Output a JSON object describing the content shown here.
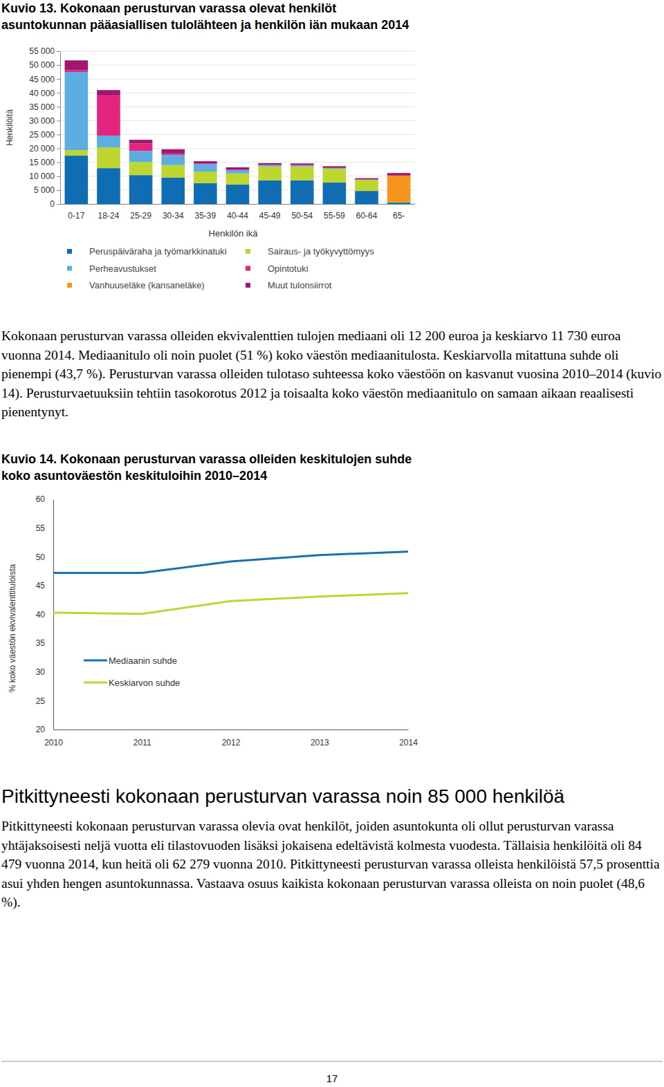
{
  "chart_data": [
    {
      "type": "bar",
      "stacked": true,
      "grid": true,
      "legend": "bottom",
      "title": [
        "Kuvio 13. Kokonaan perusturvan varassa olevat henkilöt",
        "asuntokunnan pääasiallisen tulolähteen ja henkilön iän mukaan 2014"
      ],
      "x_label": "Henkilön ikä",
      "y_label": "Henkilöitä",
      "categories": [
        "0-17",
        "18-24",
        "25-29",
        "30-34",
        "35-39",
        "40-44",
        "45-49",
        "50-54",
        "55-59",
        "60-64",
        "65-"
      ],
      "series": [
        {
          "name": "Peruspäiväraha ja työmarkkinatuki",
          "color": "#106cb3",
          "values": [
            17400,
            12900,
            10400,
            9500,
            7500,
            7000,
            8500,
            8500,
            7700,
            4700,
            500
          ]
        },
        {
          "name": "Sairaus- ja työkyvyttömyys",
          "color": "#bdd630",
          "values": [
            2000,
            7500,
            4700,
            4500,
            4200,
            4000,
            5000,
            5000,
            5000,
            4000,
            250
          ]
        },
        {
          "name": "Perheavustukset",
          "color": "#5caee2",
          "values": [
            28100,
            4200,
            4000,
            3700,
            2700,
            1200,
            500,
            400,
            250,
            100,
            0
          ]
        },
        {
          "name": "Opintotuki",
          "color": "#e5247d",
          "values": [
            700,
            14400,
            2700,
            500,
            250,
            200,
            100,
            100,
            50,
            0,
            0
          ]
        },
        {
          "name": "Vanhuuseläke (kansaneläke)",
          "color": "#f7941d",
          "values": [
            0,
            0,
            0,
            0,
            0,
            0,
            0,
            0,
            0,
            0,
            9500
          ]
        },
        {
          "name": "Muut tulonsiirrot",
          "color": "#a0176f",
          "values": [
            3500,
            2000,
            1300,
            1500,
            750,
            800,
            600,
            600,
            600,
            500,
            900
          ]
        }
      ],
      "ylim": [
        0,
        55000
      ],
      "yticks": [
        {
          "value": 0,
          "label": "0"
        },
        {
          "value": 5000,
          "label": "5 000"
        },
        {
          "value": 10000,
          "label": "10 000"
        },
        {
          "value": 15000,
          "label": "15 000"
        },
        {
          "value": 20000,
          "label": "20 000"
        },
        {
          "value": 25000,
          "label": "25 000"
        },
        {
          "value": 30000,
          "label": "30 000"
        },
        {
          "value": 35000,
          "label": "35 000"
        },
        {
          "value": 40000,
          "label": "40 000"
        },
        {
          "value": 45000,
          "label": "45 000"
        },
        {
          "value": 50000,
          "label": "50 000"
        },
        {
          "value": 55000,
          "label": "55 000"
        }
      ]
    },
    {
      "type": "line",
      "grid": false,
      "legend": "bottom-left",
      "title": [
        "Kuvio 14. Kokonaan perusturvan varassa olleiden keskitulojen suhde",
        "koko asuntoväestön keskituloihin 2010–2014"
      ],
      "y_label": "% koko väestön ekvivalenttituloista",
      "x": [
        2010,
        2011,
        2012,
        2013,
        2014
      ],
      "xlim": [
        2010,
        2014
      ],
      "xticks": [
        2010,
        2011,
        2012,
        2013,
        2014
      ],
      "ylim": [
        20,
        60
      ],
      "yticks": [
        20,
        25,
        30,
        35,
        40,
        45,
        50,
        55,
        60
      ],
      "series": [
        {
          "name": "Mediaanin suhde",
          "color": "#1b70b0",
          "values": [
            47.2,
            47.2,
            49.2,
            50.3,
            50.9
          ]
        },
        {
          "name": "Keskiarvon suhde",
          "color": "#bdd630",
          "values": [
            40.3,
            40.1,
            42.3,
            43.1,
            43.7
          ]
        }
      ]
    }
  ],
  "document": {
    "paragraphs": [
      "Kokonaan perusturvan varassa olleiden ekvivalenttien tulojen mediaani oli 12 200 euroa ja keskiarvo 11 730 euroa vuonna 2014. Mediaanitulo oli noin puolet (51 %) koko väestön mediaanitulosta. Keskiarvolla mitattuna suhde oli pienempi (43,7 %). Perusturvan varassa olleiden tulotaso suhteessa koko väestöön on kasvanut vuosina 2010–2014 (kuvio 14). Perusturvaetuuksiin tehtiin tasokorotus 2012 ja toisaalta koko väestön mediaanitulo on samaan aikaan reaalisesti pienentynyt.",
      "Pitkittyneesti kokonaan perusturvan varassa olevia ovat henkilöt, joiden asuntokunta oli ollut perusturvan varassa yhtäjaksoisesti neljä vuotta eli tilastovuoden lisäksi jokaisena edeltävistä kolmesta vuodesta. Tällaisia henkilöitä oli 84 479 vuonna 2014, kun heitä oli 62 279 vuonna 2010. Pitkittyneesti perusturvan varassa olleista henkilöistä 57,5 prosenttia asui yhden hengen asuntokunnassa. Vastaava osuus kaikista kokonaan perusturvan varassa olleista on noin puolet (48,6 %)."
    ],
    "heading": "Pitkittyneesti kokonaan perusturvan varassa noin 85 000 henkilöä",
    "page_number": "17"
  }
}
